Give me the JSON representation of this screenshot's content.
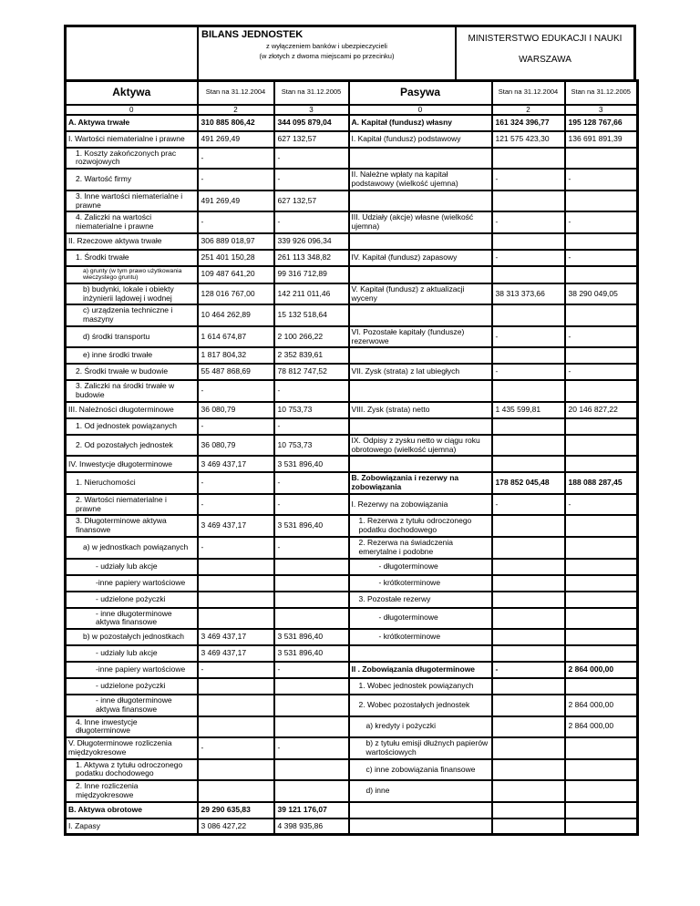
{
  "header": {
    "title": "BILANS JEDNOSTEK",
    "subtitle1": "z wyłączeniem banków i ubezpieczycieli",
    "subtitle2": "(w złotych z dwoma miejscami po przecinku)",
    "ministry": "MINISTERSTWO EDUKACJI I NAUKI",
    "city": "WARSZAWA"
  },
  "columns": {
    "aktywa": "Aktywa",
    "pasywa": "Pasywa",
    "stan_2004": "Stan na 31.12.2004",
    "stan_2005": "Stan na 31.12.2005",
    "index": [
      "0",
      "2",
      "3",
      "0",
      "2",
      "3"
    ]
  },
  "rows": [
    {
      "left": {
        "label": "A. Aktywa trwałe",
        "v2004": "310 885 806,42",
        "v2005": "344 095 879,04",
        "bold": true,
        "indent": 0
      },
      "right": {
        "label": "A. Kapitał (fundusz) własny",
        "v2004": "161 324 396,77",
        "v2005": "195 128 767,66",
        "bold": true,
        "indent": 0
      }
    },
    {
      "left": {
        "label": "I. Wartości niematerialne i prawne",
        "v2004": "491 269,49",
        "v2005": "627 132,57",
        "indent": 0
      },
      "right": {
        "label": "I. Kapitał (fundusz) podstawowy",
        "v2004": "121 575 423,30",
        "v2005": "136 691 891,39",
        "indent": 0
      }
    },
    {
      "left": {
        "label": "1. Koszty zakończonych prac rozwojowych",
        "v2004": "-",
        "v2005": "-",
        "indent": 1
      },
      "right": {
        "label": "",
        "v2004": "",
        "v2005": "",
        "indent": 0
      }
    },
    {
      "left": {
        "label": "2. Wartość firmy",
        "v2004": "-",
        "v2005": "-",
        "indent": 1
      },
      "right": {
        "label": "II. Należne wpłaty na kapitał podstawowy (wielkość ujemna)",
        "v2004": "-",
        "v2005": "-",
        "indent": 0
      }
    },
    {
      "left": {
        "label": "3. Inne wartości niematerialne i prawne",
        "v2004": "491 269,49",
        "v2005": "627 132,57",
        "indent": 1
      },
      "right": {
        "label": "",
        "v2004": "",
        "v2005": "",
        "indent": 0
      }
    },
    {
      "left": {
        "label": "4. Zaliczki na wartości niematerialne i prawne",
        "v2004": "-",
        "v2005": "-",
        "indent": 1
      },
      "right": {
        "label": "III. Udziały (akcje) własne (wielkość ujemna)",
        "v2004": "-",
        "v2005": "-",
        "indent": 0
      }
    },
    {
      "left": {
        "label": "II. Rzeczowe aktywa trwałe",
        "v2004": "306 889 018,97",
        "v2005": "339 926 096,34",
        "indent": 0
      },
      "right": {
        "label": "",
        "v2004": "",
        "v2005": "",
        "indent": 0
      }
    },
    {
      "left": {
        "label": "1. Środki trwałe",
        "v2004": "251 401 150,28",
        "v2005": "261 113 348,82",
        "indent": 1
      },
      "right": {
        "label": "IV. Kapitał (fundusz) zapasowy",
        "v2004": "-",
        "v2005": "-",
        "indent": 0
      }
    },
    {
      "left": {
        "label": "a) grunty (w tym prawo użytkowania wieczystego gruntu)",
        "v2004": "109 487 641,20",
        "v2005": "99 316 712,89",
        "indent": 2,
        "small": true
      },
      "right": {
        "label": "",
        "v2004": "",
        "v2005": "",
        "indent": 0
      }
    },
    {
      "left": {
        "label": "b) budynki, lokale i obiekty inżynierii lądowej i wodnej",
        "v2004": "128 016 767,00",
        "v2005": "142 211 011,46",
        "indent": 2
      },
      "right": {
        "label": "V. Kapitał (fundusz) z aktualizacji wyceny",
        "v2004": "38 313 373,66",
        "v2005": "38 290 049,05",
        "indent": 0
      }
    },
    {
      "left": {
        "label": "c) urządzenia techniczne i maszyny",
        "v2004": "10 464 262,89",
        "v2005": "15 132 518,64",
        "indent": 2
      },
      "right": {
        "label": "",
        "v2004": "",
        "v2005": "",
        "indent": 0
      }
    },
    {
      "left": {
        "label": "d) środki transportu",
        "v2004": "1 614 674,87",
        "v2005": "2 100 266,22",
        "indent": 2
      },
      "right": {
        "label": "VI. Pozostałe kapitały (fundusze) rezerwowe",
        "v2004": "-",
        "v2005": "-",
        "indent": 0
      }
    },
    {
      "left": {
        "label": "e) inne środki trwałe",
        "v2004": "1 817 804,32",
        "v2005": "2 352 839,61",
        "indent": 2
      },
      "right": {
        "label": "",
        "v2004": "",
        "v2005": "",
        "indent": 0
      }
    },
    {
      "left": {
        "label": "2. Środki trwałe w budowie",
        "v2004": "55 487 868,69",
        "v2005": "78 812 747,52",
        "indent": 1
      },
      "right": {
        "label": "VII. Zysk (strata) z lat ubiegłych",
        "v2004": "-",
        "v2005": "-",
        "indent": 0
      }
    },
    {
      "left": {
        "label": "3. Zaliczki na środki trwałe w budowie",
        "v2004": "-",
        "v2005": "-",
        "indent": 1
      },
      "right": {
        "label": "",
        "v2004": "",
        "v2005": "",
        "indent": 0
      }
    },
    {
      "left": {
        "label": "III. Należności długoterminowe",
        "v2004": "36 080,79",
        "v2005": "10 753,73",
        "indent": 0
      },
      "right": {
        "label": "VIII. Zysk (strata) netto",
        "v2004": "1 435 599,81",
        "v2005": "20 146 827,22",
        "indent": 0
      }
    },
    {
      "left": {
        "label": "1. Od jednostek powiązanych",
        "v2004": "-",
        "v2005": "-",
        "indent": 1
      },
      "right": {
        "label": "",
        "v2004": "",
        "v2005": "",
        "indent": 0
      }
    },
    {
      "left": {
        "label": "2. Od pozostałych jednostek",
        "v2004": "36 080,79",
        "v2005": "10 753,73",
        "indent": 1
      },
      "right": {
        "label": "IX. Odpisy z zysku netto w ciągu roku obrotowego (wielkość ujemna)",
        "v2004": "",
        "v2005": "",
        "indent": 0
      }
    },
    {
      "left": {
        "label": "IV. Inwestycje długoterminowe",
        "v2004": "3 469 437,17",
        "v2005": "3 531 896,40",
        "indent": 0
      },
      "right": {
        "label": "",
        "v2004": "",
        "v2005": "",
        "indent": 0
      }
    },
    {
      "left": {
        "label": "1. Nieruchomości",
        "v2004": "-",
        "v2005": "-",
        "indent": 1
      },
      "right": {
        "label": "B. Zobowiązania i rezerwy na zobowiązania",
        "v2004": "178 852 045,48",
        "v2005": "188 088 287,45",
        "bold": true,
        "indent": 0
      }
    },
    {
      "left": {
        "label": "2. Wartości niematerialne i prawne",
        "v2004": "-",
        "v2005": "-",
        "indent": 1
      },
      "right": {
        "label": "I. Rezerwy na zobowiązania",
        "v2004": "-",
        "v2005": "-",
        "indent": 0
      }
    },
    {
      "left": {
        "label": "3. Długoterminowe aktywa finansowe",
        "v2004": "3 469 437,17",
        "v2005": "3 531 896,40",
        "indent": 1
      },
      "right": {
        "label": "1. Rezerwa z tytułu odroczonego podatku dochodowego",
        "v2004": "",
        "v2005": "",
        "indent": 1
      }
    },
    {
      "left": {
        "label": "a) w jednostkach powiązanych",
        "v2004": "-",
        "v2005": "-",
        "indent": 2
      },
      "right": {
        "label": "2. Rezerwa na świadczenia emerytalne i podobne",
        "v2004": "",
        "v2005": "",
        "indent": 1
      }
    },
    {
      "left": {
        "label": "- udziały lub akcje",
        "v2004": "",
        "v2005": "",
        "indent": 3
      },
      "right": {
        "label": "- długoterminowe",
        "v2004": "",
        "v2005": "",
        "indent": 3
      }
    },
    {
      "left": {
        "label": "-inne papiery wartościowe",
        "v2004": "",
        "v2005": "",
        "indent": 3
      },
      "right": {
        "label": "- krótkoterminowe",
        "v2004": "",
        "v2005": "",
        "indent": 3
      }
    },
    {
      "left": {
        "label": "- udzielone pożyczki",
        "v2004": "",
        "v2005": "",
        "indent": 3
      },
      "right": {
        "label": "3. Pozostałe rezerwy",
        "v2004": "",
        "v2005": "",
        "indent": 1
      }
    },
    {
      "left": {
        "label": "- inne długoterminowe aktywa finansowe",
        "v2004": "",
        "v2005": "",
        "indent": 3
      },
      "right": {
        "label": "- długoterminowe",
        "v2004": "",
        "v2005": "",
        "indent": 3
      }
    },
    {
      "left": {
        "label": "b) w pozostałych jednostkach",
        "v2004": "3 469 437,17",
        "v2005": "3 531 896,40",
        "indent": 2
      },
      "right": {
        "label": "- krótkoterminowe",
        "v2004": "",
        "v2005": "",
        "indent": 3
      }
    },
    {
      "left": {
        "label": "- udziały lub akcje",
        "v2004": "3 469 437,17",
        "v2005": "3 531 896,40",
        "indent": 3
      },
      "right": {
        "label": "",
        "v2004": "",
        "v2005": "",
        "indent": 0
      }
    },
    {
      "left": {
        "label": "-inne papiery wartościowe",
        "v2004": "-",
        "v2005": "-",
        "indent": 3
      },
      "right": {
        "label": "II . Zobowiązania długoterminowe",
        "v2004": "-",
        "v2005": "2 864 000,00",
        "bold": true,
        "indent": 0
      }
    },
    {
      "left": {
        "label": "- udzielone pożyczki",
        "v2004": "",
        "v2005": "",
        "indent": 3
      },
      "right": {
        "label": "1. Wobec jednostek powiązanych",
        "v2004": "",
        "v2005": "",
        "indent": 1
      }
    },
    {
      "left": {
        "label": "- inne długoterminowe aktywa finansowe",
        "v2004": "",
        "v2005": "",
        "indent": 3
      },
      "right": {
        "label": "2. Wobec pozostałych jednostek",
        "v2004": "",
        "v2005": "2 864 000,00",
        "indent": 1
      }
    },
    {
      "left": {
        "label": "4. Inne inwestycje długoterminowe",
        "v2004": "",
        "v2005": "",
        "indent": 1
      },
      "right": {
        "label": "a) kredyty i pożyczki",
        "v2004": "",
        "v2005": "2 864 000,00",
        "indent": 2
      }
    },
    {
      "left": {
        "label": "V. Długoterminowe rozliczenia międzyokresowe",
        "v2004": "-",
        "v2005": "-",
        "indent": 0
      },
      "right": {
        "label": "b) z tytułu emisji dłużnych papierów wartościowych",
        "v2004": "",
        "v2005": "",
        "indent": 2
      }
    },
    {
      "left": {
        "label": "1. Aktywa z tytułu odroczonego podatku dochodowego",
        "v2004": "",
        "v2005": "",
        "indent": 1
      },
      "right": {
        "label": "c) inne zobowiązania finansowe",
        "v2004": "",
        "v2005": "",
        "indent": 2
      }
    },
    {
      "left": {
        "label": "2. Inne rozliczenia międzyokresowe",
        "v2004": "",
        "v2005": "",
        "indent": 1
      },
      "right": {
        "label": "d) inne",
        "v2004": "",
        "v2005": "",
        "indent": 2
      }
    },
    {
      "left": {
        "label": "B. Aktywa obrotowe",
        "v2004": "29 290 635,83",
        "v2005": "39 121 176,07",
        "bold": true,
        "indent": 0
      },
      "right": {
        "label": "",
        "v2004": "",
        "v2005": "",
        "indent": 0
      }
    },
    {
      "left": {
        "label": "I. Zapasy",
        "v2004": "3 086 427,22",
        "v2005": "4 398 935,86",
        "indent": 0
      },
      "right": {
        "label": "",
        "v2004": "",
        "v2005": "",
        "indent": 0
      }
    }
  ]
}
